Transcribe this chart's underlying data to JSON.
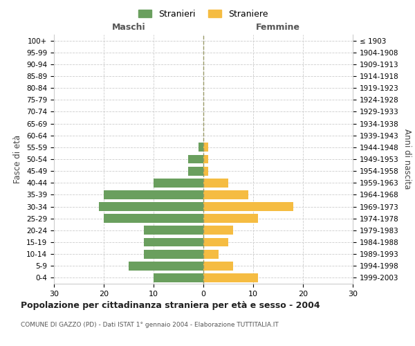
{
  "age_groups": [
    "100+",
    "95-99",
    "90-94",
    "85-89",
    "80-84",
    "75-79",
    "70-74",
    "65-69",
    "60-64",
    "55-59",
    "50-54",
    "45-49",
    "40-44",
    "35-39",
    "30-34",
    "25-29",
    "20-24",
    "15-19",
    "10-14",
    "5-9",
    "0-4"
  ],
  "birth_years": [
    "≤ 1903",
    "1904-1908",
    "1909-1913",
    "1914-1918",
    "1919-1923",
    "1924-1928",
    "1929-1933",
    "1934-1938",
    "1939-1943",
    "1944-1948",
    "1949-1953",
    "1954-1958",
    "1959-1963",
    "1964-1968",
    "1969-1973",
    "1974-1978",
    "1979-1983",
    "1984-1988",
    "1989-1993",
    "1994-1998",
    "1999-2003"
  ],
  "maschi": [
    0,
    0,
    0,
    0,
    0,
    0,
    0,
    0,
    0,
    1,
    3,
    3,
    10,
    20,
    21,
    20,
    12,
    12,
    12,
    15,
    10
  ],
  "femmine": [
    0,
    0,
    0,
    0,
    0,
    0,
    0,
    0,
    0,
    1,
    1,
    1,
    5,
    9,
    18,
    11,
    6,
    5,
    3,
    6,
    11
  ],
  "color_maschi": "#6a9f5e",
  "color_femmine": "#f5bc42",
  "title": "Popolazione per cittadinanza straniera per età e sesso - 2004",
  "subtitle": "COMUNE DI GAZZO (PD) - Dati ISTAT 1° gennaio 2004 - Elaborazione TUTTITALIA.IT",
  "ylabel_left": "Fasce di età",
  "ylabel_right": "Anni di nascita",
  "xlabel_left": "Maschi",
  "xlabel_right": "Femmine",
  "xlim": 30,
  "legend_maschi": "Stranieri",
  "legend_femmine": "Straniere",
  "background_color": "#ffffff",
  "grid_color": "#cccccc"
}
